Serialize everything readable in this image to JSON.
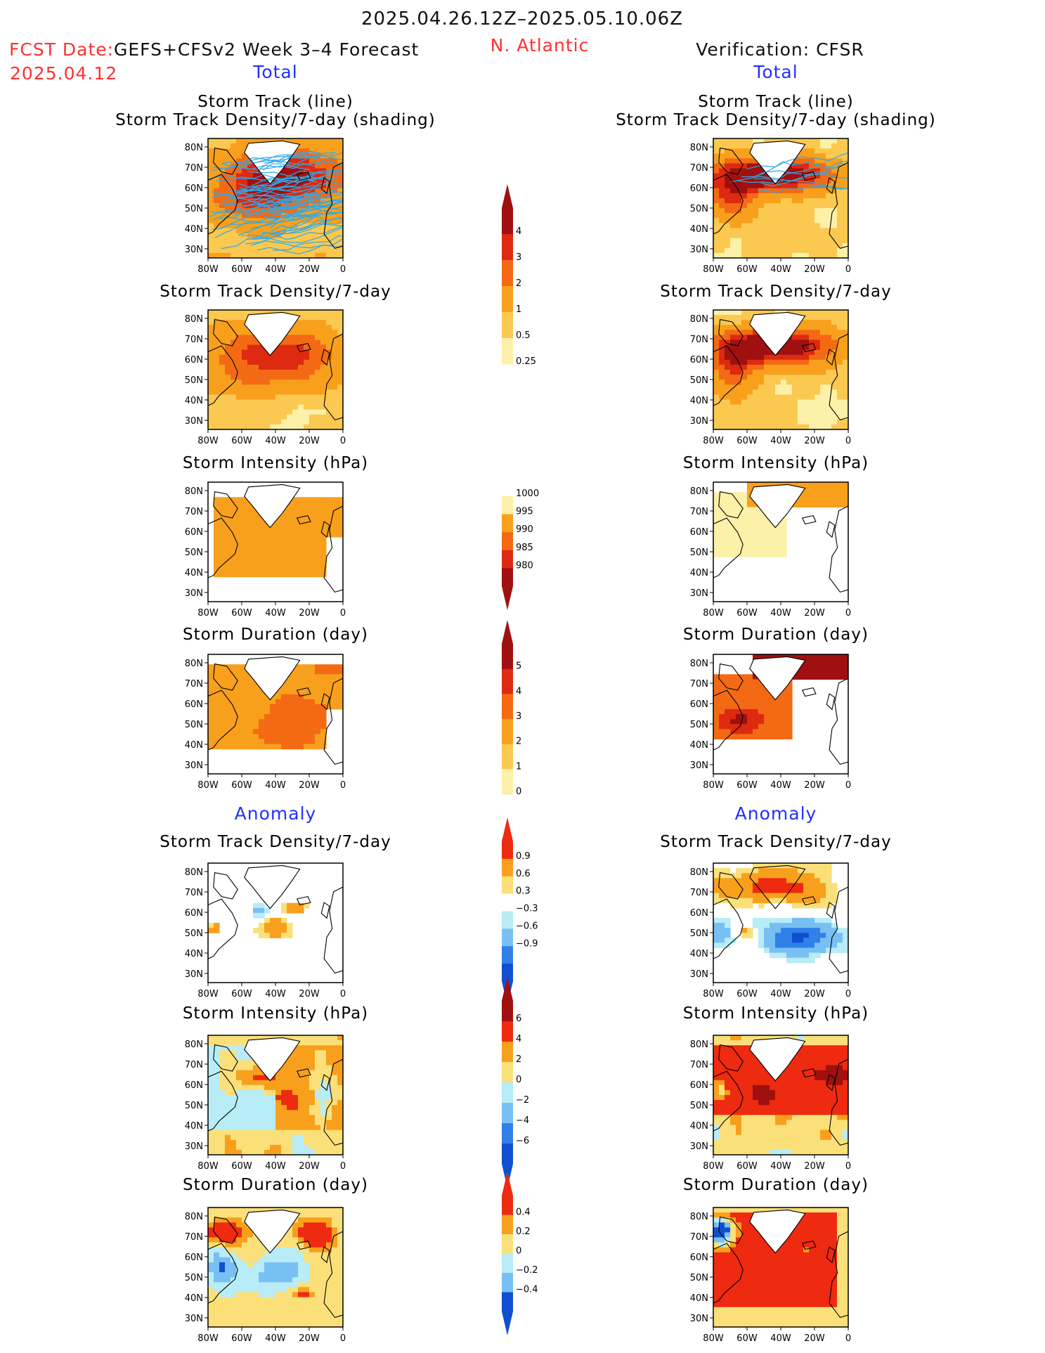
{
  "header": {
    "date_range": "2025.04.26.12Z–2025.05.10.06Z",
    "fcst_label": "FCST Date:",
    "fcst_model": "GEFS+CFSv2 Week 3–4 Forecast",
    "fcst_date": "2025.04.12",
    "region": "N. Atlantic",
    "verification": "Verification: CFSR",
    "left_total": "Total",
    "right_total": "Total",
    "left_anomaly": "Anomaly",
    "right_anomaly": "Anomaly"
  },
  "map_axes": {
    "lon_ticks": [
      "80W",
      "60W",
      "40W",
      "20W",
      "0"
    ],
    "lat_ticks": [
      "80N",
      "70N",
      "60N",
      "50N",
      "40N",
      "30N"
    ]
  },
  "colors": {
    "frame": "#000000",
    "title_red": "#ff3030",
    "title_blue": "#2030ff",
    "track_line": "#30a8e8"
  },
  "chart_data": [
    {
      "id": "left-track",
      "type": "heatmap",
      "title": [
        "Storm Track (line)",
        "Storm Track Density/7-day (shading)"
      ],
      "overlay": "storm-track-lines",
      "xlabel": "",
      "ylabel": ""
    },
    {
      "id": "right-track",
      "type": "heatmap",
      "title": [
        "Storm Track (line)",
        "Storm Track Density/7-day (shading)"
      ],
      "overlay": "storm-track-lines",
      "xlabel": "",
      "ylabel": ""
    },
    {
      "id": "left-density",
      "type": "heatmap",
      "title": [
        "Storm Track Density/7-day"
      ]
    },
    {
      "id": "right-density",
      "type": "heatmap",
      "title": [
        "Storm Track Density/7-day"
      ]
    },
    {
      "id": "left-intensity",
      "type": "heatmap",
      "title": [
        "Storm Intensity (hPa)"
      ]
    },
    {
      "id": "right-intensity",
      "type": "heatmap",
      "title": [
        "Storm Intensity (hPa)"
      ]
    },
    {
      "id": "left-duration",
      "type": "heatmap",
      "title": [
        "Storm Duration (day)"
      ]
    },
    {
      "id": "right-duration",
      "type": "heatmap",
      "title": [
        "Storm Duration (day)"
      ]
    },
    {
      "id": "left-density-anom",
      "type": "heatmap",
      "title": [
        "Storm Track Density/7-day"
      ]
    },
    {
      "id": "right-density-anom",
      "type": "heatmap",
      "title": [
        "Storm Track Density/7-day"
      ]
    },
    {
      "id": "left-intensity-anom",
      "type": "heatmap",
      "title": [
        "Storm Intensity (hPa)"
      ]
    },
    {
      "id": "right-intensity-anom",
      "type": "heatmap",
      "title": [
        "Storm Intensity (hPa)"
      ]
    },
    {
      "id": "left-duration-anom",
      "type": "heatmap",
      "title": [
        "Storm Duration (day)"
      ]
    },
    {
      "id": "right-duration-anom",
      "type": "heatmap",
      "title": [
        "Storm Duration (day)"
      ]
    }
  ],
  "colorbars": [
    {
      "id": "density",
      "labels": [
        "4",
        "3",
        "2",
        "1",
        "0.5",
        "0.25"
      ],
      "colors": [
        "#a01010",
        "#dd2a10",
        "#f46a14",
        "#f8a01c",
        "#fbc850",
        "#fdf0a8"
      ]
    },
    {
      "id": "intensity",
      "labels": [
        "1000",
        "995",
        "990",
        "985",
        "980"
      ],
      "colors": [
        "#fdf0a8",
        "#f8a01c",
        "#f46a14",
        "#dd2a10",
        "#a01010"
      ]
    },
    {
      "id": "duration",
      "labels": [
        "5",
        "4",
        "3",
        "2",
        "1",
        "0"
      ],
      "colors": [
        "#a01010",
        "#dd2a10",
        "#f46a14",
        "#f8a01c",
        "#fbc850",
        "#fdf0a8"
      ]
    },
    {
      "id": "density-anom",
      "labels": [
        "0.9",
        "0.6",
        "0.3",
        "−0.3",
        "−0.6",
        "−0.9"
      ],
      "colors": [
        "#ee2a10",
        "#f8a01c",
        "#fbe07a",
        "#ffffff",
        "#b8ecf6",
        "#78c0f4",
        "#3080e8",
        "#1050d0"
      ]
    },
    {
      "id": "intensity-anom",
      "labels": [
        "6",
        "4",
        "2",
        "0",
        "−2",
        "−4",
        "−6"
      ],
      "colors": [
        "#a01010",
        "#ee2a10",
        "#f8a01c",
        "#fbe07a",
        "#b8ecf6",
        "#78c0f4",
        "#3080e8",
        "#1050d0"
      ]
    },
    {
      "id": "duration-anom",
      "labels": [
        "0.4",
        "0.2",
        "0",
        "−0.2",
        "−0.4"
      ],
      "colors": [
        "#ee2a10",
        "#f8a01c",
        "#fbe07a",
        "#b8ecf6",
        "#78c0f4",
        "#1050d0"
      ]
    }
  ]
}
